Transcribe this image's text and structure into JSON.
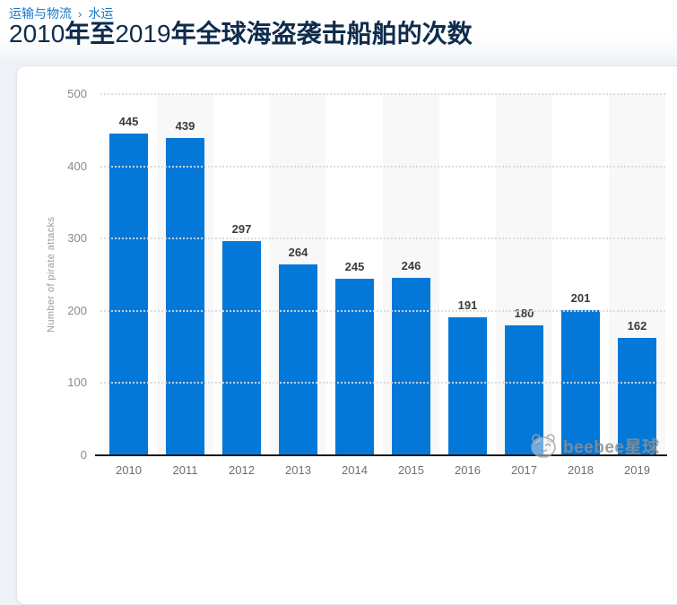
{
  "breadcrumb": {
    "items": [
      "运输与物流",
      "水运"
    ],
    "separator": "›"
  },
  "title": "2010年至2019年全球海盗袭击船舶的次数",
  "title_segments": [
    {
      "text": "2010",
      "bold": false
    },
    {
      "text": "年至",
      "bold": true
    },
    {
      "text": "2019",
      "bold": false
    },
    {
      "text": "年全球海盗袭击船舶的次数",
      "bold": true
    }
  ],
  "watermark": {
    "text": "beebee星球",
    "icon": "panda-face-icon"
  },
  "colors": {
    "bar": "#0478d9",
    "link": "#1b77c4",
    "title": "#0e2c4c",
    "axis_line": "#1a1a1a",
    "column_band": "#f8f8f8",
    "gridline": "#dadada",
    "value_label": "#3b3b3b",
    "tick_label": "#8a8a8a",
    "x_label": "#6f6f6f",
    "watermark": "#8f8f8f"
  },
  "chart_data": {
    "type": "bar",
    "categories": [
      "2010",
      "2011",
      "2012",
      "2013",
      "2014",
      "2015",
      "2016",
      "2017",
      "2018",
      "2019"
    ],
    "values": [
      445,
      439,
      297,
      264,
      245,
      246,
      191,
      180,
      201,
      162
    ],
    "title": "2010年至2019年全球海盗袭击船舶的次数",
    "xlabel": "",
    "ylabel": "Number of pirate attacks",
    "ylim": [
      0,
      500
    ],
    "yticks": [
      0,
      100,
      200,
      300,
      400,
      500
    ],
    "grid": "horizontal-dotted",
    "legend": "none",
    "alternating_column_bands": true,
    "value_labels_above_bars": true
  }
}
